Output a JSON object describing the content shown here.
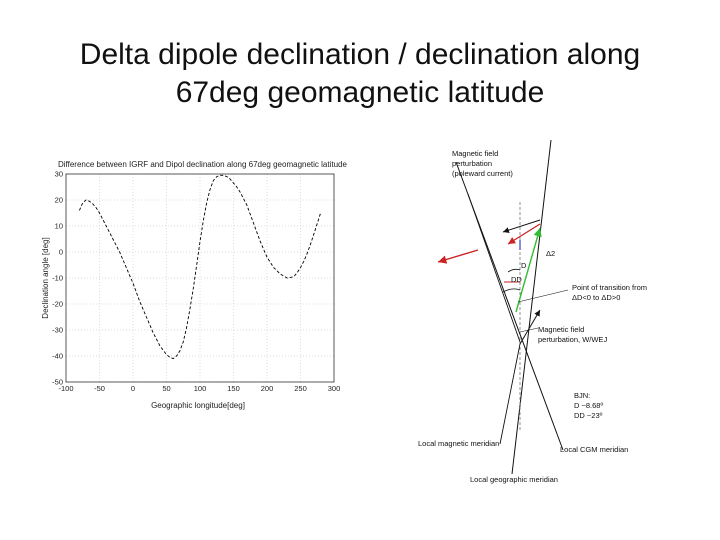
{
  "slide": {
    "title_line1": "Delta dipole declination / declination along",
    "title_line2": "67deg geomagnetic latitude"
  },
  "chart_data": {
    "type": "line",
    "title": "Difference between IGRF and Dipol declination along 67deg geomagnetic latitude",
    "xlabel": "Geographic longitude[deg]",
    "ylabel": "Declination angle [deg]",
    "xlim": [
      -100,
      300
    ],
    "ylim": [
      -50,
      30
    ],
    "xticks": [
      "-100",
      "-50",
      "0",
      "50",
      "100",
      "150",
      "200",
      "250",
      "300"
    ],
    "yticks": [
      "30",
      "20",
      "10",
      "0",
      "-10",
      "-20",
      "-30",
      "-40",
      "-50"
    ],
    "grid": true,
    "line_style": "dashed",
    "color": "#000000",
    "series": [
      {
        "x": [
          -80,
          -75,
          -70,
          -65,
          -60,
          -55,
          -50,
          -40,
          -30,
          -20,
          -10,
          0,
          10,
          20,
          30,
          40,
          50,
          55,
          60,
          65,
          70,
          75,
          80,
          85,
          90,
          95,
          100,
          105,
          110,
          115,
          120,
          125,
          130,
          135,
          140,
          145,
          150,
          155,
          160,
          170,
          180,
          190,
          200,
          210,
          220,
          230,
          240,
          245,
          250,
          255,
          260,
          265,
          270,
          275,
          280
        ],
        "y": [
          16,
          19,
          20,
          19.5,
          18.5,
          17,
          15,
          10,
          5,
          0,
          -6,
          -12,
          -19,
          -25,
          -31,
          -36,
          -39.5,
          -40.5,
          -41,
          -40,
          -38,
          -34.5,
          -29,
          -22,
          -14,
          -5,
          4,
          12,
          19,
          24,
          27.5,
          29,
          29.5,
          29.5,
          29,
          28,
          26.5,
          25,
          23,
          18,
          11,
          4,
          -2,
          -6,
          -8.5,
          -10,
          -9.5,
          -8,
          -6,
          -3.5,
          -0.5,
          3,
          7,
          11,
          15
        ]
      }
    ]
  },
  "diagram": {
    "labels": {
      "field_poleward_1": "Magnetic field",
      "field_poleward_2": "perturbation",
      "field_poleward_3": "(poleward current)",
      "delta": "Δ2",
      "d": "D",
      "dd": "DD",
      "transition_1": "Point of transition from",
      "transition_2": "ΔD<0 to ΔD>0",
      "wwej_1": "Magnetic field",
      "wwej_2": "perturbation, W/WEJ",
      "bjn_1": "BJN:",
      "bjn_2": "D   ~8.68º",
      "bjn_3": "DD ~23º",
      "local_magnetic": "Local magnetic meridian",
      "local_cgm": "Local CGM meridian",
      "local_geographic": "Local geographic meridian"
    },
    "colors": {
      "red": "#cc2222",
      "green": "#33bb33",
      "blue": "#3344cc"
    }
  }
}
